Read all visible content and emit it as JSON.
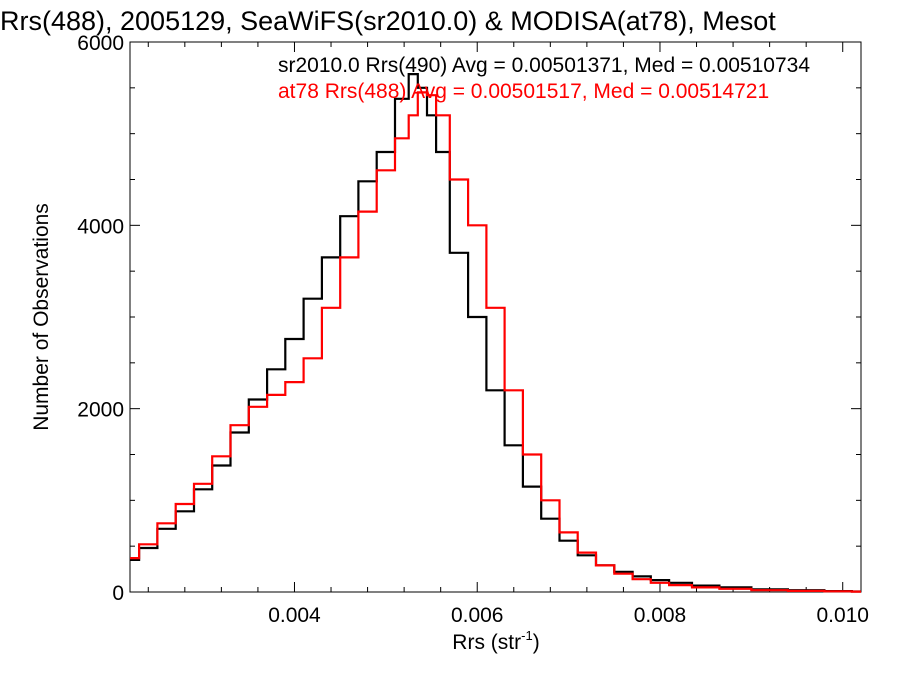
{
  "chart_data": {
    "type": "line",
    "title": "Rrs(488), 2005129, SeaWiFS(sr2010.0) & MODISA(at78), Mesot",
    "xlabel": "Rrs (str",
    "xlabel_sup": "-1",
    "xlabel_close": ")",
    "ylabel": "Number of Observations",
    "xlim": [
      0.0022,
      0.0102
    ],
    "ylim": [
      0,
      6000
    ],
    "xticks": [
      {
        "value": 0.004,
        "label": "0.004"
      },
      {
        "value": 0.006,
        "label": "0.006"
      },
      {
        "value": 0.008,
        "label": "0.008"
      },
      {
        "value": 0.01,
        "label": "0.010"
      }
    ],
    "yticks": [
      {
        "value": 0,
        "label": "0"
      },
      {
        "value": 2000,
        "label": "2000"
      },
      {
        "value": 4000,
        "label": "4000"
      },
      {
        "value": 6000,
        "label": "6000"
      }
    ],
    "grid": false,
    "legend_position": "top-right",
    "series": [
      {
        "name": "sr2010.0 Rrs(490) Avg = 0.00501371, Med = 0.00510734",
        "color": "#000000",
        "step": true,
        "x": [
          0.0022,
          0.0024,
          0.0026,
          0.0028,
          0.003,
          0.0032,
          0.0034,
          0.0036,
          0.0038,
          0.004,
          0.0042,
          0.0044,
          0.0046,
          0.0048,
          0.005,
          0.0052,
          0.0053,
          0.0054,
          0.0055,
          0.0056,
          0.0058,
          0.006,
          0.0062,
          0.0064,
          0.0066,
          0.0068,
          0.007,
          0.0072,
          0.0074,
          0.0076,
          0.0078,
          0.008,
          0.0082,
          0.0085,
          0.0088,
          0.0092,
          0.0096,
          0.01,
          0.0102
        ],
        "y": [
          350,
          480,
          690,
          880,
          1120,
          1380,
          1740,
          2100,
          2430,
          2760,
          3200,
          3650,
          4100,
          4480,
          4800,
          5380,
          5650,
          5500,
          5200,
          4800,
          3700,
          3000,
          2200,
          1600,
          1150,
          800,
          560,
          400,
          290,
          220,
          170,
          130,
          100,
          70,
          50,
          30,
          20,
          10,
          5
        ]
      },
      {
        "name": "at78 Rrs(488) Avg = 0.00501517, Med = 0.00514721",
        "color": "#ff0000",
        "step": true,
        "x": [
          0.0022,
          0.0024,
          0.0026,
          0.0028,
          0.003,
          0.0032,
          0.0034,
          0.0036,
          0.0038,
          0.004,
          0.0042,
          0.0044,
          0.0046,
          0.0048,
          0.005,
          0.0052,
          0.0053,
          0.0054,
          0.0055,
          0.0056,
          0.0058,
          0.006,
          0.0062,
          0.0064,
          0.0066,
          0.0068,
          0.007,
          0.0072,
          0.0074,
          0.0076,
          0.0078,
          0.008,
          0.0082,
          0.0085,
          0.0088,
          0.0092,
          0.0096,
          0.01,
          0.0102
        ],
        "y": [
          370,
          520,
          750,
          960,
          1180,
          1480,
          1820,
          2020,
          2150,
          2290,
          2550,
          3100,
          3650,
          4150,
          4600,
          4950,
          5200,
          5450,
          5420,
          5200,
          4500,
          4000,
          3100,
          2200,
          1500,
          1000,
          650,
          430,
          290,
          200,
          140,
          100,
          75,
          50,
          35,
          20,
          12,
          8,
          4
        ]
      }
    ]
  }
}
